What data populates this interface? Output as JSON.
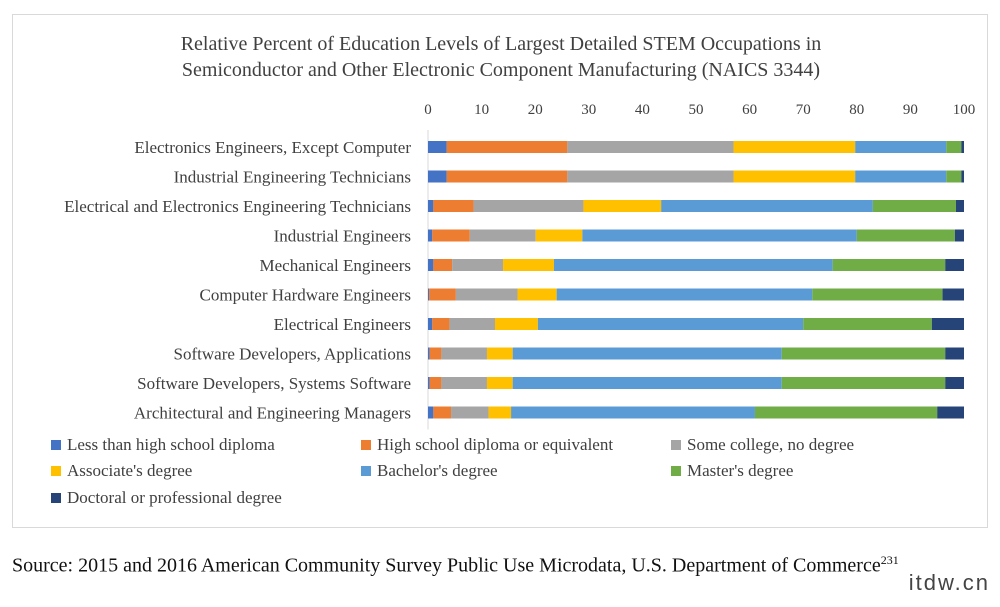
{
  "chart_data": {
    "type": "bar",
    "orientation": "horizontal",
    "stacked": true,
    "title_lines": [
      "Relative Percent of Education Levels of Largest Detailed STEM Occupations in",
      "Semiconductor and Other Electronic Component Manufacturing (NAICS 3344)"
    ],
    "x_ticks": [
      "0",
      "10",
      "20",
      "30",
      "40",
      "50",
      "60",
      "70",
      "80",
      "90",
      "100"
    ],
    "xlim": [
      0,
      100
    ],
    "grid": false,
    "legend_position": "bottom",
    "categories": [
      "Electronics Engineers, Except Computer",
      "Industrial Engineering Technicians",
      "Electrical and Electronics Engineering Technicians",
      "Industrial Engineers",
      "Mechanical Engineers",
      "Computer Hardware Engineers",
      "Electrical Engineers",
      "Software Developers, Applications",
      "Software Developers, Systems Software",
      "Architectural and Engineering Managers"
    ],
    "series": [
      {
        "name": "Less than high school diploma",
        "color": "#4472C4",
        "values": [
          3.5,
          3.5,
          1.0,
          0.8,
          1.0,
          0.2,
          0.8,
          0.3,
          0.3,
          1.0
        ]
      },
      {
        "name": "High school diploma or equivalent",
        "color": "#ED7D31",
        "values": [
          22.5,
          22.5,
          7.5,
          7.0,
          3.5,
          5.0,
          3.2,
          2.2,
          2.2,
          3.3
        ]
      },
      {
        "name": "Some college, no degree",
        "color": "#A5A5A5",
        "values": [
          31.0,
          31.0,
          20.5,
          12.3,
          9.5,
          11.5,
          8.5,
          8.5,
          8.5,
          7.0
        ]
      },
      {
        "name": "Associate's degree",
        "color": "#FFC000",
        "values": [
          22.7,
          22.7,
          14.5,
          8.7,
          9.5,
          7.3,
          8.0,
          4.8,
          4.8,
          4.2
        ]
      },
      {
        "name": "Bachelor's degree",
        "color": "#5B9BD5",
        "values": [
          17.0,
          17.0,
          39.5,
          51.2,
          52.0,
          47.7,
          49.5,
          50.2,
          50.2,
          45.5
        ]
      },
      {
        "name": "Master's degree",
        "color": "#70AD47",
        "values": [
          2.8,
          2.8,
          15.5,
          18.3,
          21.0,
          24.3,
          24.0,
          30.5,
          30.5,
          34.0
        ]
      },
      {
        "name": "Doctoral or professional degree",
        "color": "#264478",
        "values": [
          0.5,
          0.5,
          1.5,
          1.7,
          3.5,
          4.0,
          6.0,
          3.5,
          3.5,
          5.0
        ]
      }
    ]
  },
  "source": {
    "text": "Source: 2015 and 2016 American Community Survey Public Use Microdata, U.S. Department of Commerce",
    "superscript": "231"
  },
  "watermark": "itdw.cn"
}
